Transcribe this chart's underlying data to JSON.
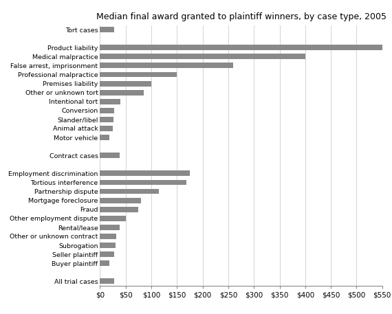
{
  "title": "Median final award granted to plaintiff winners, by case type, 2005",
  "categories": [
    "Tort cases",
    "",
    "Product liability",
    "Medical malpractice",
    "False arrest, imprisonment",
    "Professional malpractice",
    "Premises liability",
    "Other or unknown tort",
    "Intentional tort",
    "Conversion",
    "Slander/libel",
    "Animal attack",
    "Motor vehicle",
    "",
    "Contract cases",
    "",
    "Employment discrimination",
    "Tortious interference",
    "Partnership dispute",
    "Mortgage foreclosure",
    "Fraud",
    "Other employment dispute",
    "Rental/lease",
    "Other or unknown contract",
    "Subrogation",
    "Seller plaintiff",
    "Buyer plaintiff",
    "",
    "All trial cases"
  ],
  "values": [
    28,
    0,
    550,
    400,
    260,
    150,
    100,
    85,
    40,
    28,
    27,
    25,
    18,
    0,
    38,
    0,
    175,
    168,
    115,
    80,
    75,
    50,
    38,
    32,
    30,
    28,
    18,
    0,
    28
  ],
  "bar_color": "#898989",
  "background_color": "#ffffff",
  "xlim": [
    0,
    550
  ],
  "xtick_values": [
    0,
    50,
    100,
    150,
    200,
    250,
    300,
    350,
    400,
    450,
    500,
    550
  ],
  "xtick_labels": [
    "$0",
    "$50",
    "$100",
    "$150",
    "$200",
    "$250",
    "$300",
    "$350",
    "$400",
    "$450",
    "$500",
    "$550"
  ],
  "title_fontsize": 9,
  "label_fontsize": 6.8,
  "tick_fontsize": 7.5
}
